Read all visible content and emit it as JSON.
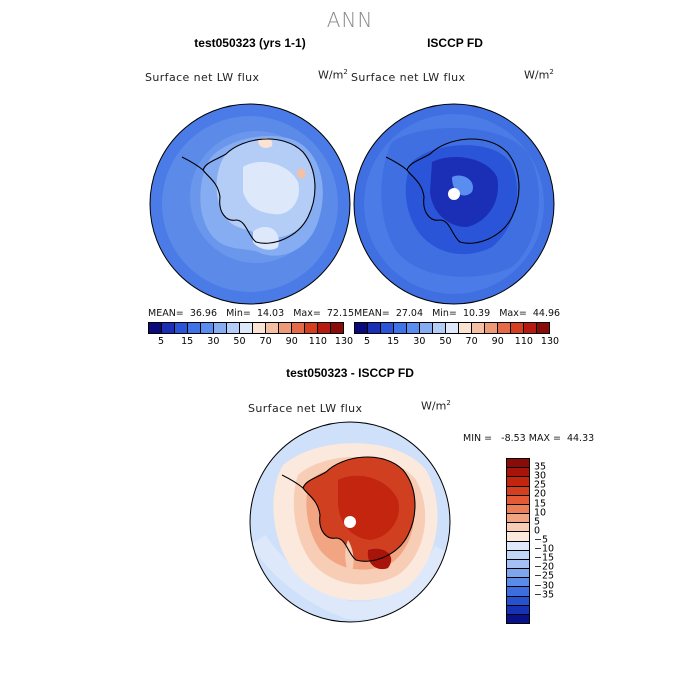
{
  "page": {
    "season_title": "ANN"
  },
  "panels": [
    {
      "title": "test050323 (yrs 1-1)",
      "variable": "Surface net LW flux",
      "units": "W/m",
      "units_exp": "2",
      "stats": {
        "mean_label": "MEAN=",
        "mean": "36.96",
        "min_label": "Min=",
        "min": "14.03",
        "max_label": "Max=",
        "max": "72.15"
      }
    },
    {
      "title": "ISCCP FD",
      "variable": "Surface net LW flux",
      "units": "W/m",
      "units_exp": "2",
      "stats": {
        "mean_label": "MEAN=",
        "mean": "27.04",
        "min_label": "Min=",
        "min": "10.39",
        "max_label": "Max=",
        "max": "44.96"
      }
    }
  ],
  "diff_panel": {
    "title": "test050323 - ISCCP FD",
    "variable": "Surface net LW flux",
    "units": "W/m",
    "units_exp": "2",
    "stats_text": "MIN =   -8.53 MAX =  44.33"
  },
  "abs_colorbar": {
    "colors": [
      "#0a0a7a",
      "#1a2fb5",
      "#2a55d8",
      "#3f73e8",
      "#5a8df0",
      "#86acf2",
      "#b3cdf6",
      "#dde9fb",
      "#fbe3d4",
      "#f5bfa4",
      "#ee9977",
      "#e56b48",
      "#d43f20",
      "#b71a10",
      "#8a0c08"
    ],
    "labels": [
      "5",
      "15",
      "30",
      "50",
      "70",
      "90",
      "110",
      "130"
    ]
  },
  "diff_colorbar": {
    "colors": [
      "#8a0c08",
      "#a8130a",
      "#c3250f",
      "#d43f20",
      "#e35a35",
      "#ec7e58",
      "#f2a582",
      "#f7cdb6",
      "#fbe9dd",
      "#dde9fb",
      "#c0d6f7",
      "#a3c1f3",
      "#7ea6ee",
      "#5a8be8",
      "#3d6ee0",
      "#2652d0",
      "#1533b4",
      "#08108a"
    ],
    "labels": [
      "35",
      "30",
      "25",
      "20",
      "15",
      "10",
      "5",
      "0",
      "−5",
      "−10",
      "−15",
      "−20",
      "−25",
      "−30",
      "−35"
    ]
  },
  "map_colors": {
    "ocean_abs_model": "#5b8ae8",
    "ocean_abs_obs": "#3f6fe0",
    "ocean_diff": "#cfe0fa",
    "land_diff": "#d04020"
  }
}
